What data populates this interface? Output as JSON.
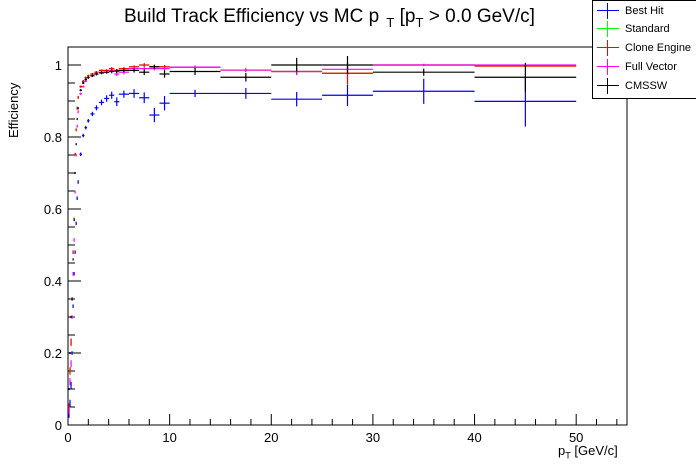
{
  "chart_data": {
    "type": "scatter",
    "title": "Build Track Efficiency vs MC p",
    "title_sub": "T",
    "title_rest": "[p",
    "title_sub2": "T",
    "title_end": "> 0.0 GeV/c]",
    "xlabel": "p",
    "xlabel_sub": "T",
    "xlabel_rest": "[GeV/c]",
    "ylabel": "Efficiency",
    "xlim": [
      0,
      55
    ],
    "ylim": [
      0,
      1.05
    ],
    "x_ticks": [
      0,
      10,
      20,
      30,
      40,
      50
    ],
    "x_tick_labels": [
      "0",
      "10",
      "20",
      "30",
      "40",
      "50"
    ],
    "y_ticks": [
      0,
      0.2,
      0.4,
      0.6,
      0.8,
      1
    ],
    "y_tick_labels": [
      "0",
      "0.2",
      "0.4",
      "0.6",
      "0.8",
      "1"
    ],
    "legend_position": "top-right",
    "x": [
      0.1,
      0.2,
      0.3,
      0.4,
      0.5,
      0.6,
      0.7,
      0.8,
      0.9,
      1.0,
      1.25,
      1.5,
      1.75,
      2.0,
      2.4,
      2.8,
      3.3,
      3.8,
      4.3,
      4.8,
      5.5,
      6.5,
      7.5,
      8.5,
      9.5,
      12.5,
      17.5,
      22.5,
      27.5,
      35,
      45
    ],
    "xerr": [
      0.05,
      0.05,
      0.05,
      0.05,
      0.05,
      0.05,
      0.05,
      0.05,
      0.05,
      0.05,
      0.125,
      0.125,
      0.125,
      0.125,
      0.2,
      0.2,
      0.25,
      0.25,
      0.25,
      0.25,
      0.5,
      0.5,
      0.5,
      0.5,
      0.5,
      2.5,
      2.5,
      2.5,
      2.5,
      5,
      5
    ],
    "series": [
      {
        "name": "Best Hit",
        "color": "#0000ff",
        "y": [
          0.03,
          0.06,
          0.11,
          0.2,
          0.33,
          0.42,
          0.48,
          0.56,
          0.63,
          0.675,
          0.752,
          0.804,
          0.826,
          0.845,
          0.864,
          0.881,
          0.896,
          0.907,
          0.916,
          0.898,
          0.919,
          0.921,
          0.909,
          0.861,
          0.894,
          0.921,
          0.921,
          0.905,
          0.916,
          0.927,
          0.899
        ],
        "yerr": [
          0.01,
          0.01,
          0.01,
          0.005,
          0.005,
          0.005,
          0.005,
          0.005,
          0.005,
          0.005,
          0.005,
          0.005,
          0.005,
          0.005,
          0.006,
          0.007,
          0.008,
          0.009,
          0.01,
          0.012,
          0.01,
          0.012,
          0.015,
          0.02,
          0.02,
          0.01,
          0.015,
          0.02,
          0.03,
          0.035,
          0.07
        ]
      },
      {
        "name": "Standard",
        "color": "#00ff00",
        "y": [
          0.05,
          0.15,
          0.23,
          0.35,
          0.48,
          0.571,
          0.752,
          0.82,
          0.88,
          0.91,
          0.94,
          0.955,
          0.965,
          0.97,
          0.975,
          0.98,
          0.985,
          0.985,
          0.99,
          0.985,
          0.99,
          0.995,
          1.0,
          0.995,
          0.995,
          0.994,
          0.986,
          0.982,
          0.977,
          1.0,
          0.997
        ],
        "yerr": [
          0.01,
          0.01,
          0.01,
          0.005,
          0.005,
          0.005,
          0.004,
          0.004,
          0.004,
          0.004,
          0.003,
          0.003,
          0.003,
          0.003,
          0.003,
          0.003,
          0.003,
          0.003,
          0.004,
          0.004,
          0.004,
          0.004,
          0.005,
          0.005,
          0.005,
          0.004,
          0.005,
          0.01,
          0.03,
          0.003,
          0.003
        ]
      },
      {
        "name": "Clone Engine",
        "color": "#ff0000",
        "y": [
          0.05,
          0.15,
          0.23,
          0.35,
          0.48,
          0.571,
          0.752,
          0.82,
          0.88,
          0.91,
          0.94,
          0.955,
          0.965,
          0.97,
          0.975,
          0.98,
          0.985,
          0.985,
          0.99,
          0.985,
          0.99,
          0.995,
          1.0,
          0.995,
          0.995,
          0.994,
          0.986,
          0.982,
          0.977,
          1.0,
          0.997
        ],
        "yerr": [
          0.01,
          0.01,
          0.01,
          0.005,
          0.005,
          0.005,
          0.004,
          0.004,
          0.004,
          0.004,
          0.003,
          0.003,
          0.003,
          0.003,
          0.003,
          0.003,
          0.003,
          0.003,
          0.004,
          0.004,
          0.004,
          0.004,
          0.005,
          0.005,
          0.005,
          0.004,
          0.005,
          0.01,
          0.03,
          0.003,
          0.003
        ]
      },
      {
        "name": "Full Vector",
        "color": "#ff00ff",
        "y": [
          0.04,
          0.12,
          0.17,
          0.3,
          0.42,
          0.514,
          0.647,
          0.75,
          0.83,
          0.87,
          0.92,
          0.94,
          0.955,
          0.965,
          0.97,
          0.975,
          0.98,
          0.98,
          0.985,
          0.975,
          0.98,
          0.99,
          0.99,
          0.99,
          0.99,
          0.994,
          0.986,
          0.982,
          0.988,
          1.0,
          1.0
        ],
        "yerr": [
          0.01,
          0.01,
          0.01,
          0.005,
          0.005,
          0.005,
          0.004,
          0.004,
          0.004,
          0.004,
          0.003,
          0.003,
          0.003,
          0.003,
          0.003,
          0.003,
          0.003,
          0.003,
          0.004,
          0.006,
          0.006,
          0.005,
          0.005,
          0.005,
          0.005,
          0.004,
          0.005,
          0.01,
          0.015,
          0.003,
          0.003
        ]
      },
      {
        "name": "CMSSW",
        "color": "#000000",
        "y": [
          0.1,
          0.2,
          0.3,
          0.35,
          0.46,
          0.57,
          0.7,
          0.78,
          0.85,
          0.88,
          0.93,
          0.95,
          0.96,
          0.965,
          0.97,
          0.975,
          0.978,
          0.98,
          0.982,
          0.983,
          0.985,
          0.985,
          0.98,
          0.995,
          0.975,
          0.982,
          0.966,
          1.0,
          1.0,
          0.98,
          0.966
        ],
        "yerr": [
          0.003,
          0.003,
          0.003,
          0.003,
          0.003,
          0.003,
          0.003,
          0.003,
          0.003,
          0.003,
          0.003,
          0.003,
          0.003,
          0.003,
          0.003,
          0.004,
          0.004,
          0.004,
          0.005,
          0.005,
          0.005,
          0.006,
          0.008,
          0.006,
          0.01,
          0.01,
          0.012,
          0.02,
          0.025,
          0.01,
          0.04
        ]
      }
    ]
  }
}
